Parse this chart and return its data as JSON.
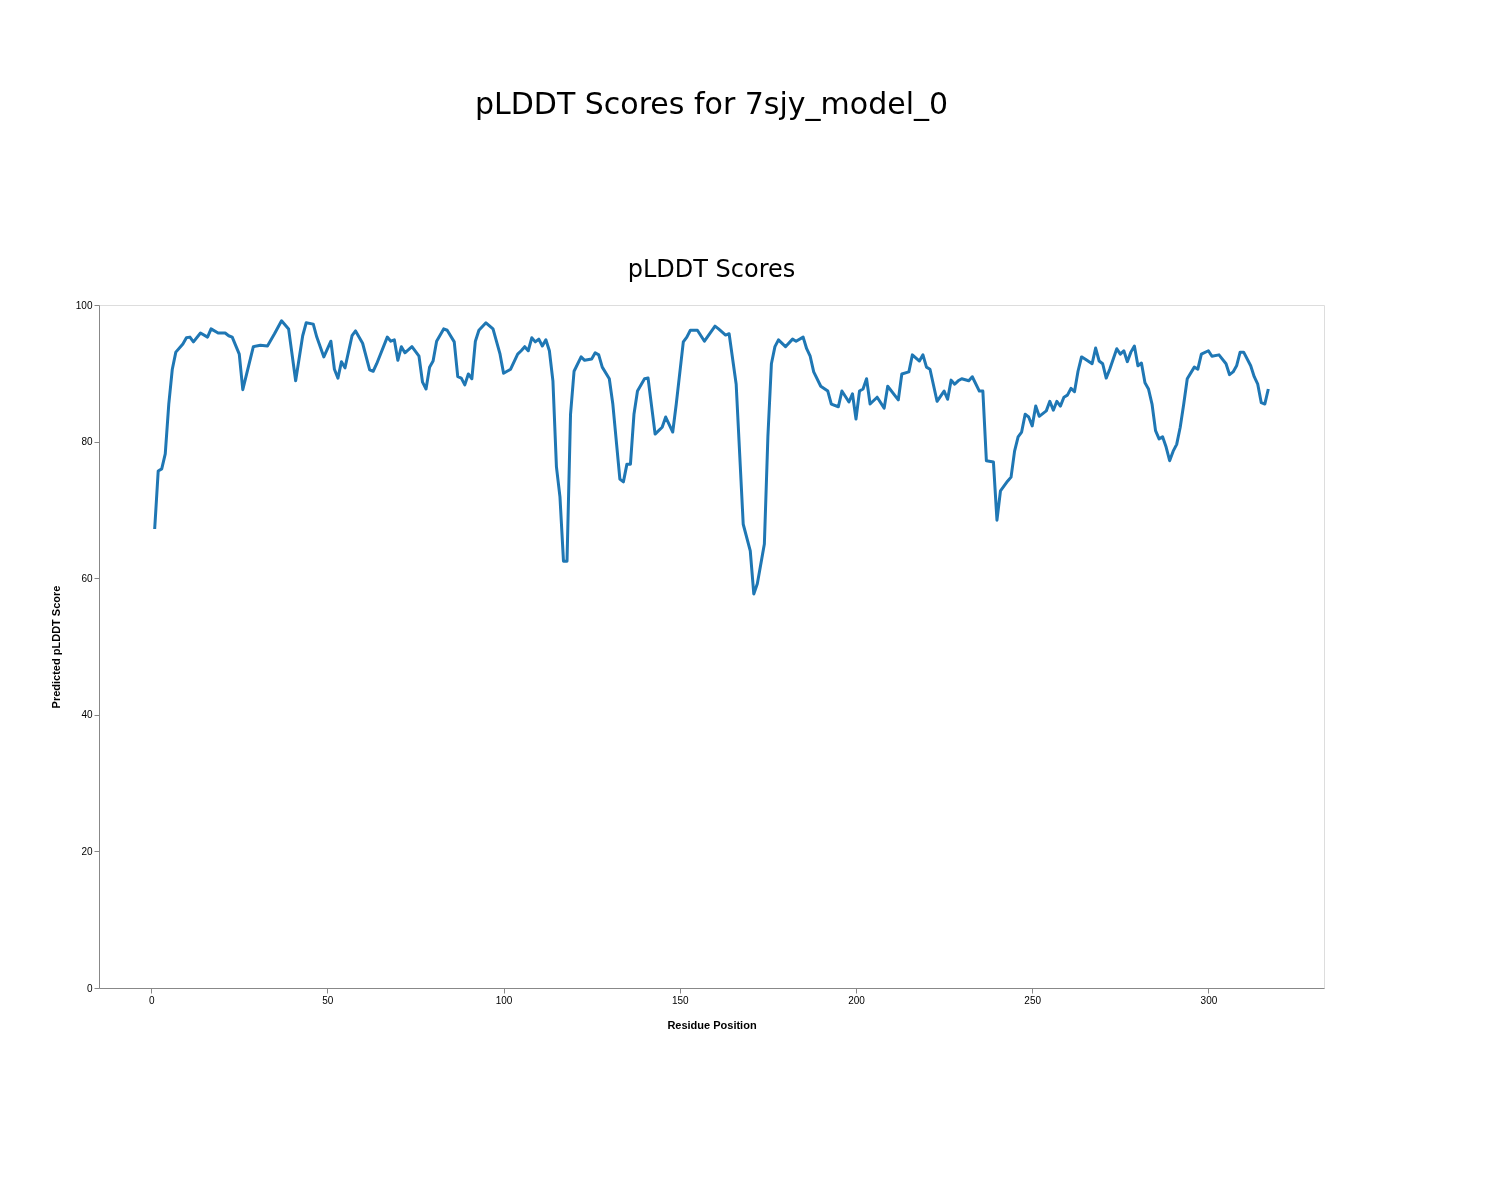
{
  "chart_data": {
    "type": "line",
    "title": "pLDDT Scores for 7sjy_model_0",
    "subtitle": "pLDDT Scores",
    "xlabel": "Residue Position",
    "ylabel": "Predicted pLDDT Score",
    "x": [
      1,
      2,
      3,
      4,
      5,
      6,
      7,
      9,
      10,
      11,
      12,
      14,
      16,
      17,
      19,
      21,
      22,
      23,
      25,
      26,
      29,
      31,
      33,
      35,
      37,
      39,
      41,
      43,
      44,
      46,
      47,
      49,
      51,
      52,
      53,
      54,
      55,
      57,
      58,
      60,
      62,
      63,
      64,
      67,
      68,
      69,
      70,
      71,
      72,
      74,
      76,
      77,
      78,
      79,
      80,
      81,
      83,
      84,
      86,
      87,
      88,
      89,
      90,
      91,
      92,
      93,
      95,
      97,
      99,
      100,
      102,
      104,
      105,
      106,
      107,
      108,
      109,
      110,
      111,
      112,
      113,
      114,
      115,
      116,
      117,
      118,
      119,
      120,
      122,
      123,
      125,
      126,
      127,
      128,
      130,
      131,
      133,
      134,
      135,
      136,
      137,
      138,
      140,
      141,
      143,
      144,
      145,
      146,
      148,
      149,
      151,
      152,
      153,
      155,
      157,
      160,
      161,
      163,
      164,
      166,
      168,
      170,
      171,
      172,
      174,
      175,
      176,
      177,
      178,
      180,
      182,
      183,
      185,
      186,
      187,
      188,
      190,
      192,
      193,
      195,
      196,
      198,
      199,
      200,
      201,
      202,
      203,
      204,
      206,
      208,
      209,
      212,
      213,
      215,
      216,
      218,
      219,
      220,
      221,
      223,
      225,
      226,
      227,
      228,
      229,
      230,
      232,
      233,
      235,
      236,
      237,
      239,
      240,
      241,
      243,
      244,
      245,
      246,
      247,
      248,
      249,
      250,
      251,
      252,
      254,
      255,
      256,
      257,
      258,
      259,
      260,
      261,
      262,
      263,
      264,
      265,
      267,
      268,
      269,
      270,
      271,
      272,
      274,
      275,
      276,
      277,
      278,
      279,
      280,
      281,
      282,
      283,
      284,
      285,
      286,
      287,
      288,
      289,
      290,
      291,
      292,
      293,
      294,
      296,
      297,
      298,
      300,
      301,
      303,
      305,
      306,
      307,
      308,
      309,
      310,
      312,
      313,
      314,
      315,
      316,
      317
    ],
    "series": [
      {
        "color": "#1f77b4",
        "values": [
          67.2,
          75.7,
          76,
          78.2,
          85.5,
          90.6,
          93.1,
          94.3,
          95.2,
          95.3,
          94.6,
          95.9,
          95.3,
          96.5,
          95.9,
          95.9,
          95.5,
          95.3,
          92.8,
          87.6,
          93.9,
          94.1,
          94,
          95.8,
          97.7,
          96.5,
          88.9,
          95.5,
          97.4,
          97.2,
          95.3,
          92.4,
          94.7,
          90.6,
          89.3,
          91.7,
          90.8,
          95.5,
          96.2,
          94.4,
          90.5,
          90.3,
          91.4,
          95.3,
          94.7,
          94.9,
          91.9,
          93.9,
          93,
          93.9,
          92.5,
          88.7,
          87.7,
          90.9,
          91.8,
          94.7,
          96.5,
          96.3,
          94.6,
          89.5,
          89.3,
          88.3,
          89.9,
          89.2,
          94.7,
          96.3,
          97.4,
          96.5,
          92.8,
          90,
          90.6,
          92.8,
          93.3,
          93.9,
          93.3,
          95.2,
          94.6,
          95,
          94,
          94.9,
          93.3,
          88.9,
          76.3,
          71.9,
          62.5,
          62.5,
          84,
          90.3,
          92.4,
          91.9,
          92.1,
          93,
          92.7,
          90.9,
          89.2,
          85.5,
          74.5,
          74.1,
          76.7,
          76.7,
          84,
          87.4,
          89.2,
          89.3,
          81.1,
          81.6,
          82.1,
          83.6,
          81.4,
          85.5,
          94.6,
          95.3,
          96.3,
          96.3,
          94.7,
          96.9,
          96.5,
          95.6,
          95.8,
          88.4,
          67.9,
          64,
          57.7,
          59.2,
          65,
          80.7,
          91.4,
          93.9,
          94.9,
          93.9,
          95,
          94.7,
          95.3,
          93.6,
          92.5,
          90.2,
          88.1,
          87.4,
          85.5,
          85.1,
          87.4,
          85.8,
          87,
          83.3,
          87.4,
          87.7,
          89.2,
          85.5,
          86.5,
          84.9,
          88.1,
          86.1,
          89.9,
          90.2,
          92.7,
          91.8,
          92.7,
          90.9,
          90.6,
          85.9,
          87.4,
          86.2,
          89,
          88.4,
          88.9,
          89.2,
          88.9,
          89.5,
          87.4,
          87.4,
          77.2,
          77,
          68.5,
          72.8,
          74.2,
          74.8,
          78.6,
          80.7,
          81.4,
          84,
          83.6,
          82.3,
          85.2,
          83.7,
          84.5,
          85.9,
          84.6,
          85.9,
          85.2,
          86.5,
          86.8,
          87.8,
          87.3,
          90.3,
          92.4,
          92.1,
          91.4,
          93.7,
          91.8,
          91.4,
          89.3,
          90.6,
          93.6,
          92.8,
          93.3,
          91.7,
          93.1,
          94,
          91.1,
          91.5,
          88.6,
          87.7,
          85.5,
          81.6,
          80.4,
          80.7,
          79.2,
          77.2,
          78.6,
          79.6,
          82.1,
          85.5,
          89.2,
          90.9,
          90.6,
          92.8,
          93.3,
          92.5,
          92.7,
          91.4,
          89.8,
          90.2,
          91.1,
          93.1,
          93.1,
          91.1,
          89.5,
          88.4,
          85.7,
          85.5,
          87.7
        ]
      }
    ],
    "xlim": [
      -14.8,
      332.8
    ],
    "xticks": [
      0,
      50,
      100,
      150,
      200,
      250,
      300
    ],
    "ylim": [
      0,
      100
    ],
    "yticks": [
      0,
      20,
      40,
      60,
      80,
      100
    ],
    "grid": false,
    "legend": false,
    "marker": "none",
    "line_style": "solid"
  }
}
